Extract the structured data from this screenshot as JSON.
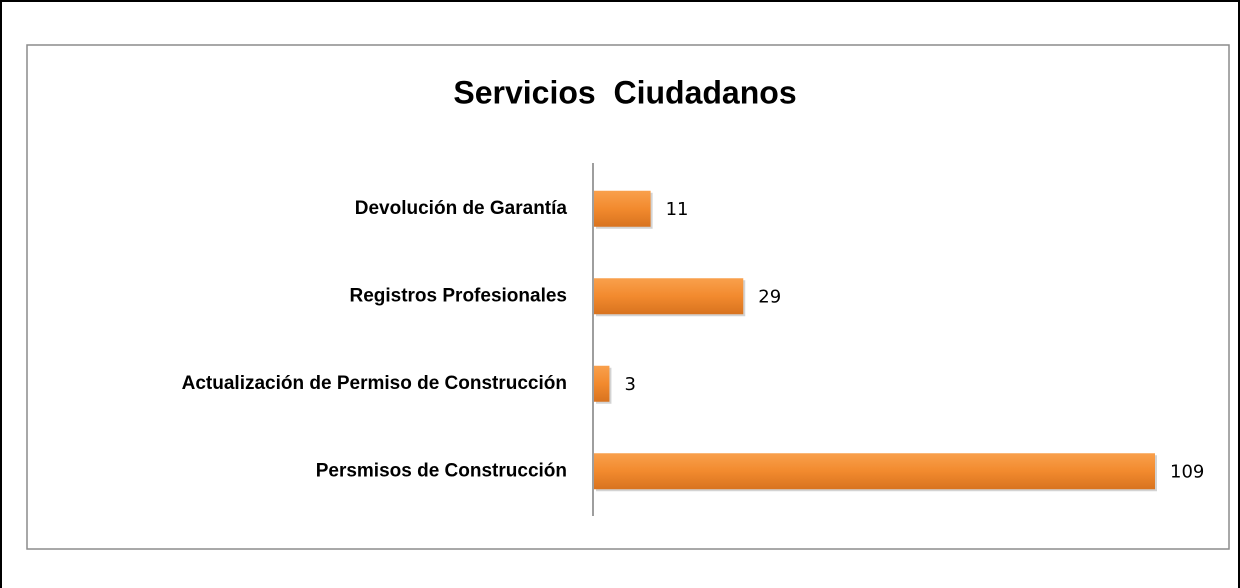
{
  "chart_data": {
    "type": "bar",
    "orientation": "horizontal",
    "title": "Servicios  Ciudadanos",
    "categories": [
      "Devolución de Garantía",
      "Registros Profesionales",
      "Actualización de Permiso de Construcción",
      "Persmisos de Construcción"
    ],
    "values": [
      11,
      29,
      3,
      109
    ],
    "color": "#f28a2e"
  }
}
